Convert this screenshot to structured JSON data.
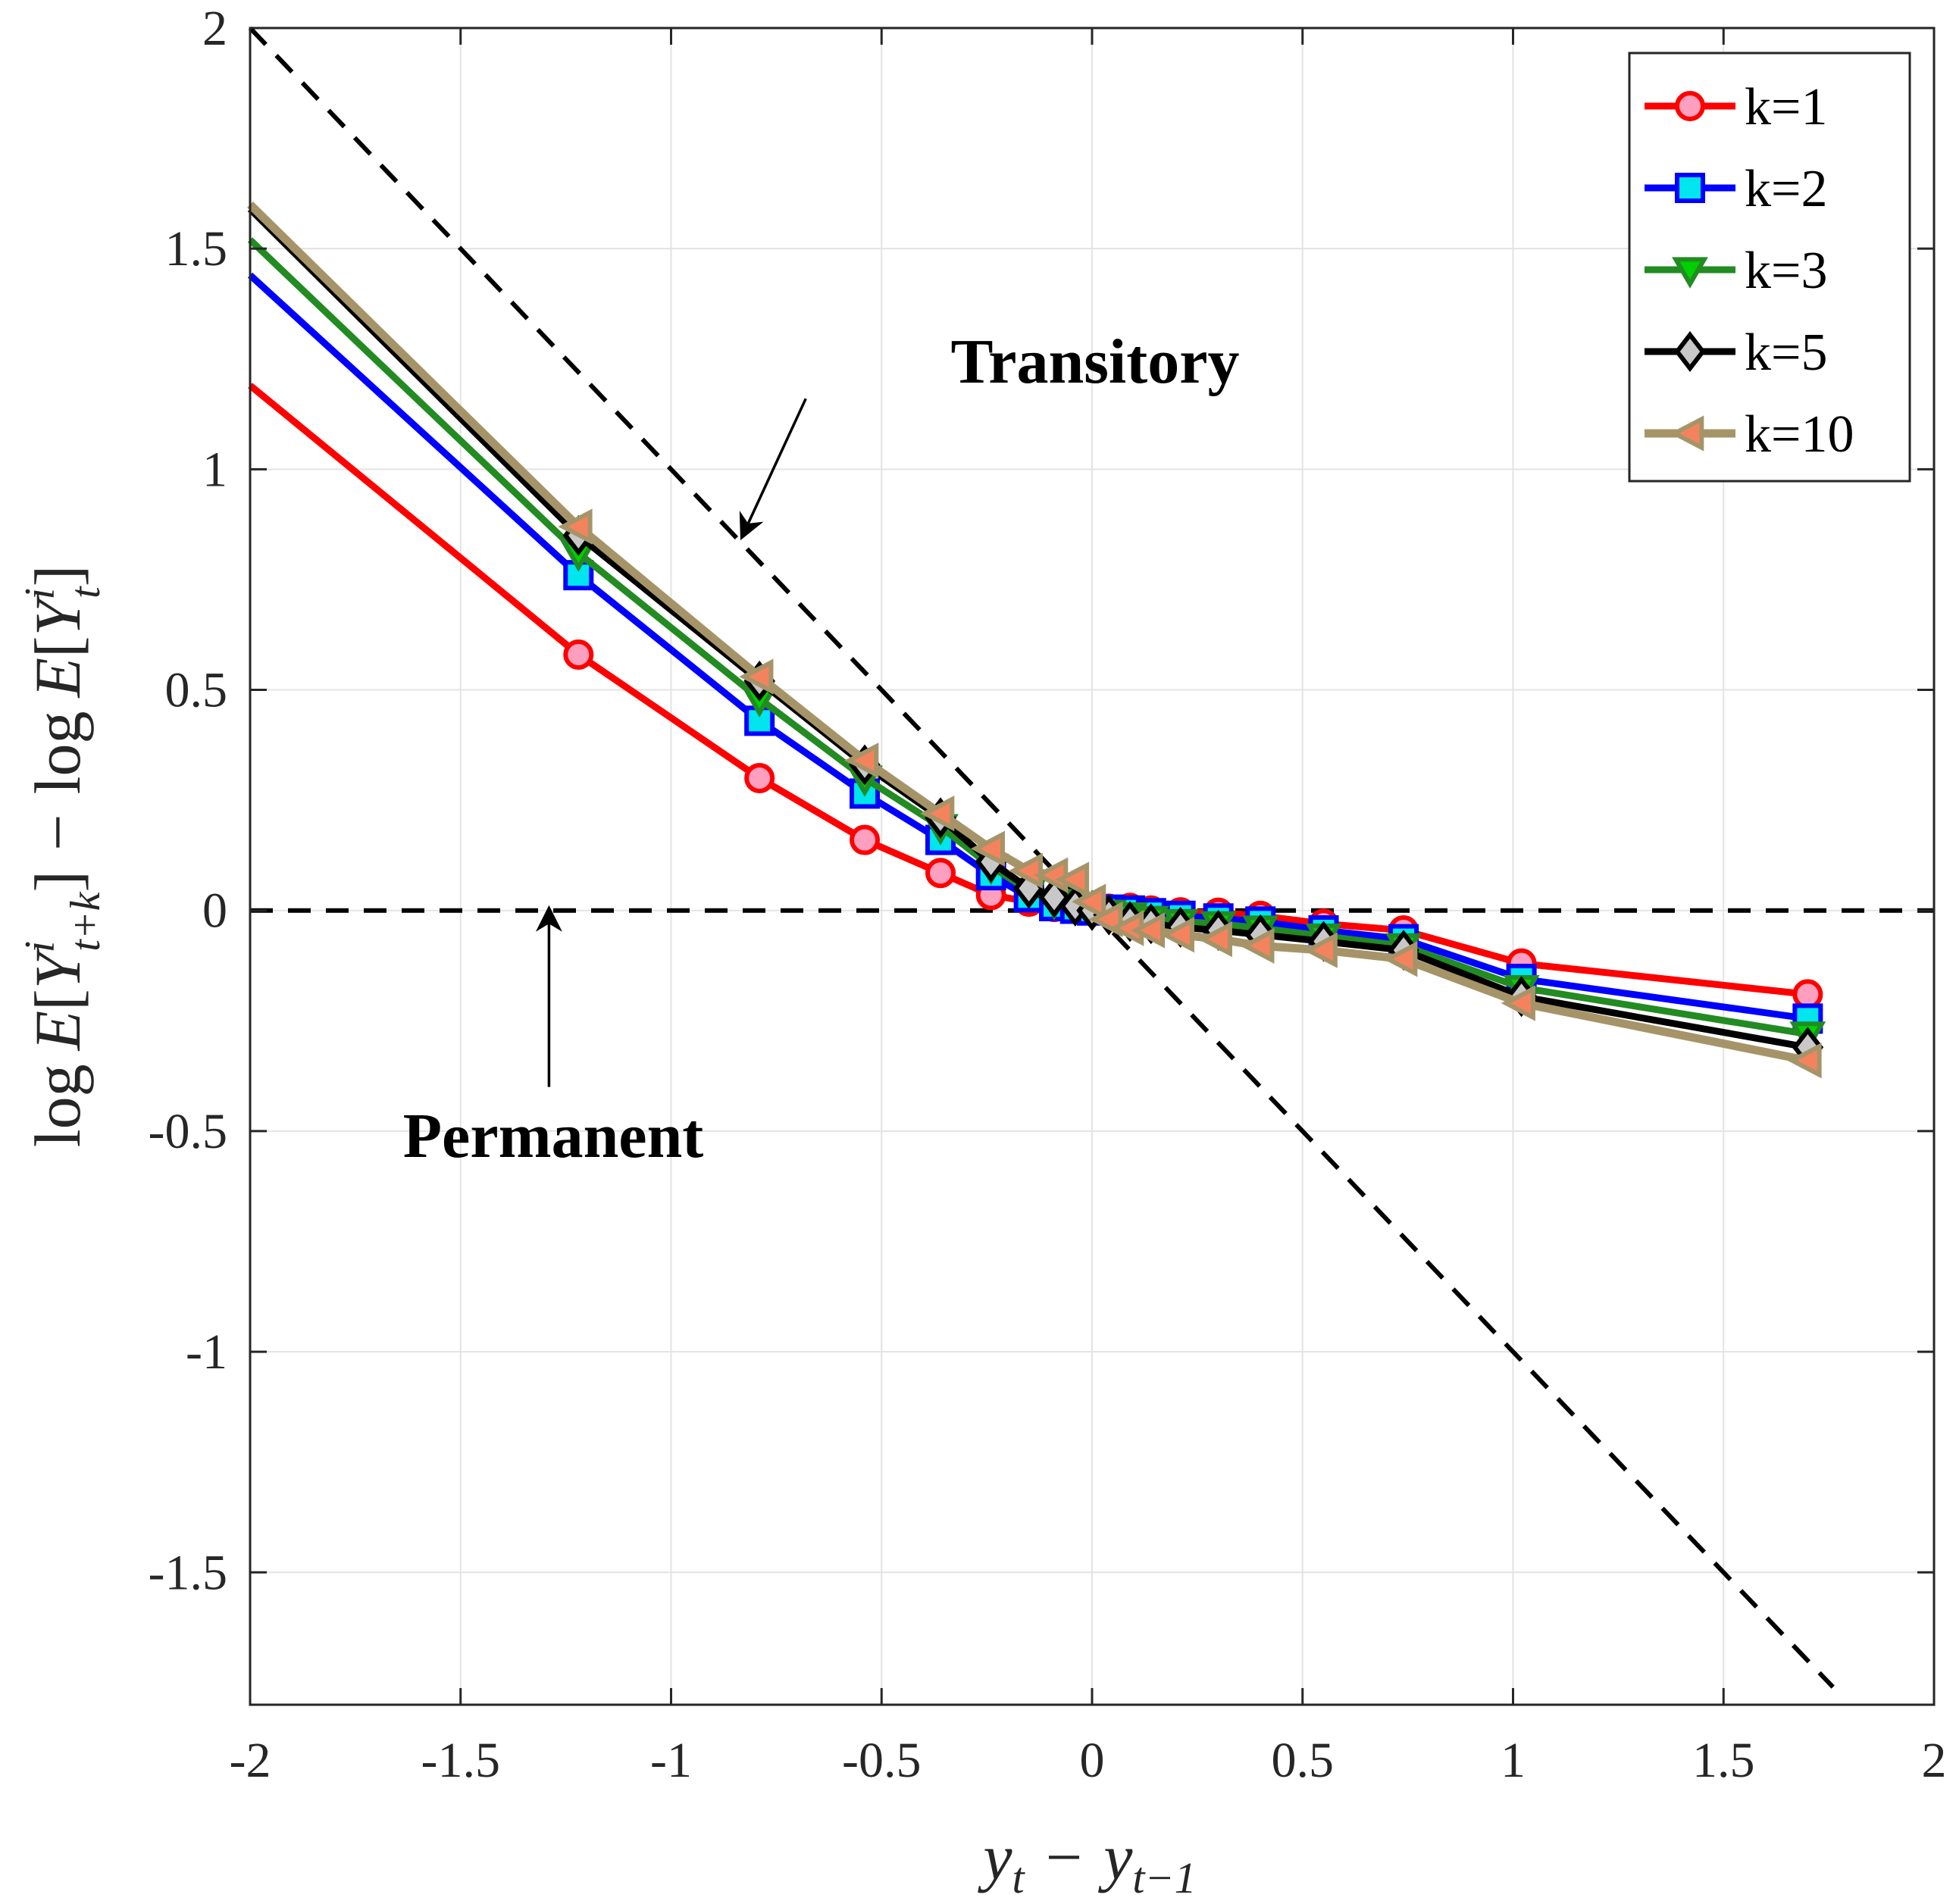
{
  "chart_data": {
    "type": "line",
    "xlabel": "y_t − y_t−1",
    "xlabel_parts": {
      "y1": "y",
      "s1": "t",
      "minus": "−",
      "y2": "y",
      "s2": "t−1"
    },
    "ylabel": "log E[Y^i_t+k] − log E[Y^i_t]",
    "ylabel_parts": {
      "log1": "log",
      "E1": "E",
      "Y1": "Y",
      "sup1": "i",
      "sub1": "t+k",
      "minus": "−",
      "log2": "log",
      "E2": "E",
      "Y2": "Y",
      "sup2": "i",
      "sub2": "t"
    },
    "xlim": [
      -2,
      2
    ],
    "ylim": [
      -1.8,
      2
    ],
    "xticks": [
      -2,
      -1.5,
      -1,
      -0.5,
      0,
      0.5,
      1,
      1.5,
      2
    ],
    "xtick_labels": [
      "-2",
      "-1.5",
      "-1",
      "-0.5",
      "0",
      "0.5",
      "1",
      "1.5",
      "2"
    ],
    "yticks": [
      -1.5,
      -1,
      -0.5,
      0,
      0.5,
      1,
      1.5,
      2
    ],
    "ytick_labels": [
      "-1.5",
      "-1",
      "-0.5",
      "0",
      "0.5",
      "1",
      "1.5",
      "2"
    ],
    "grid": true,
    "legend_position": "top-right",
    "reference_lines": [
      {
        "name": "transitory",
        "x": [
          -2,
          1.76
        ],
        "y": [
          2,
          -1.76
        ],
        "style": "dashed",
        "color": "#000000"
      },
      {
        "name": "permanent",
        "x": [
          -2,
          2
        ],
        "y": [
          0,
          0
        ],
        "style": "dashed",
        "color": "#000000"
      }
    ],
    "annotations": [
      {
        "text": "Transitory",
        "arrow_from": [
          -0.68,
          1.16
        ],
        "arrow_to": [
          -0.83,
          0.85
        ]
      },
      {
        "text": "Permanent",
        "arrow_from": [
          -1.29,
          -0.4
        ],
        "arrow_to": [
          -1.29,
          0.0
        ]
      }
    ],
    "series": [
      {
        "name": "k=1",
        "color": "#ff0000",
        "marker": "circle",
        "marker_fill": "#ff9fbf",
        "width": 9,
        "x": [
          -2.0,
          -1.22,
          -0.79,
          -0.54,
          -0.36,
          -0.24,
          -0.15,
          -0.09,
          -0.04,
          0.0,
          0.04,
          0.09,
          0.14,
          0.21,
          0.3,
          0.4,
          0.55,
          0.74,
          1.02,
          1.7
        ],
        "y": [
          1.19,
          0.58,
          0.3,
          0.16,
          0.085,
          0.035,
          0.02,
          0.008,
          0.004,
          0.0,
          0.004,
          0.006,
          0.0,
          -0.004,
          -0.005,
          -0.012,
          -0.03,
          -0.045,
          -0.12,
          -0.19
        ]
      },
      {
        "name": "k=2",
        "color": "#0000ff",
        "marker": "square",
        "marker_fill": "#00e5ee",
        "width": 9,
        "x": [
          -2.0,
          -1.22,
          -0.79,
          -0.54,
          -0.36,
          -0.24,
          -0.15,
          -0.09,
          -0.04,
          0.0,
          0.04,
          0.09,
          0.14,
          0.21,
          0.3,
          0.4,
          0.55,
          0.74,
          1.02,
          1.7
        ],
        "y": [
          1.44,
          0.76,
          0.43,
          0.265,
          0.16,
          0.08,
          0.03,
          0.01,
          0.004,
          0.0,
          0.002,
          0.0,
          -0.006,
          -0.012,
          -0.018,
          -0.025,
          -0.045,
          -0.065,
          -0.155,
          -0.245
        ]
      },
      {
        "name": "k=3",
        "color": "#228b22",
        "marker": "triangle-down",
        "marker_fill": "#00d000",
        "width": 9,
        "x": [
          -2.0,
          -1.22,
          -0.79,
          -0.54,
          -0.36,
          -0.24,
          -0.15,
          -0.09,
          -0.04,
          0.0,
          0.04,
          0.09,
          0.14,
          0.21,
          0.3,
          0.4,
          0.55,
          0.74,
          1.02,
          1.7
        ],
        "y": [
          1.52,
          0.81,
          0.48,
          0.3,
          0.19,
          0.1,
          0.045,
          0.02,
          0.008,
          0.0,
          -0.004,
          -0.01,
          -0.018,
          -0.025,
          -0.03,
          -0.04,
          -0.058,
          -0.08,
          -0.175,
          -0.28
        ]
      },
      {
        "name": "k=5",
        "color": "#000000",
        "marker": "diamond",
        "marker_fill": "#c8c8c8",
        "width": 9,
        "x": [
          -2.0,
          -1.22,
          -0.79,
          -0.54,
          -0.36,
          -0.24,
          -0.15,
          -0.09,
          -0.04,
          0.0,
          0.04,
          0.09,
          0.14,
          0.21,
          0.3,
          0.4,
          0.55,
          0.74,
          1.02,
          1.7
        ],
        "y": [
          1.59,
          0.85,
          0.52,
          0.33,
          0.21,
          0.11,
          0.05,
          0.03,
          0.01,
          0.0,
          -0.01,
          -0.025,
          -0.03,
          -0.038,
          -0.045,
          -0.055,
          -0.07,
          -0.09,
          -0.195,
          -0.31
        ]
      },
      {
        "name": "k=10",
        "color": "#a69469",
        "marker": "triangle-left",
        "marker_fill": "#f4835d",
        "width": 11,
        "x": [
          -2.0,
          -1.22,
          -0.79,
          -0.54,
          -0.36,
          -0.24,
          -0.15,
          -0.09,
          -0.04,
          0.0,
          0.04,
          0.09,
          0.14,
          0.21,
          0.3,
          0.4,
          0.55,
          0.74,
          1.02,
          1.7
        ],
        "y": [
          1.6,
          0.87,
          0.53,
          0.34,
          0.22,
          0.14,
          0.09,
          0.08,
          0.07,
          0.02,
          -0.02,
          -0.04,
          -0.045,
          -0.055,
          -0.065,
          -0.08,
          -0.09,
          -0.11,
          -0.21,
          -0.34
        ]
      }
    ]
  }
}
